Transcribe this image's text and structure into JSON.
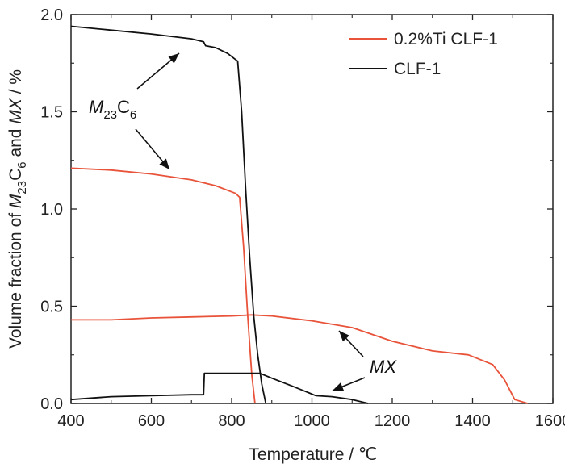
{
  "chart_data": {
    "type": "line",
    "xlabel": "Temperature / ℃",
    "ylabel": {
      "prefix": "Volume fraction of ",
      "m": "M",
      "m_sub": "23",
      "c": "C",
      "c_sub": "6",
      "and": " and ",
      "mx": "MX",
      "suffix": " / %"
    },
    "xlim": [
      400,
      1600
    ],
    "ylim": [
      0,
      2.0
    ],
    "xticks": [
      "400",
      "600",
      "800",
      "1000",
      "1200",
      "1400",
      "1600"
    ],
    "yticks": [
      "0.0",
      "0.5",
      "1.0",
      "1.5",
      "2.0"
    ],
    "grid": false,
    "legend_position": "top-right",
    "series": [
      {
        "name": "0.2%Ti CLF-1",
        "color": "#e8533a",
        "curves": [
          {
            "phase": "M23C6",
            "points": [
              [
                400,
                1.21
              ],
              [
                500,
                1.2
              ],
              [
                600,
                1.18
              ],
              [
                700,
                1.15
              ],
              [
                760,
                1.12
              ],
              [
                810,
                1.08
              ],
              [
                820,
                1.06
              ],
              [
                830,
                0.8
              ],
              [
                840,
                0.45
              ],
              [
                850,
                0.15
              ],
              [
                858,
                0.0
              ]
            ]
          },
          {
            "phase": "MX",
            "points": [
              [
                400,
                0.43
              ],
              [
                500,
                0.43
              ],
              [
                600,
                0.44
              ],
              [
                700,
                0.445
              ],
              [
                800,
                0.45
              ],
              [
                850,
                0.455
              ],
              [
                900,
                0.45
              ],
              [
                1000,
                0.425
              ],
              [
                1100,
                0.39
              ],
              [
                1200,
                0.32
              ],
              [
                1300,
                0.27
              ],
              [
                1390,
                0.25
              ],
              [
                1450,
                0.2
              ],
              [
                1480,
                0.12
              ],
              [
                1505,
                0.02
              ],
              [
                1537,
                0.0
              ]
            ]
          }
        ]
      },
      {
        "name": "CLF-1",
        "color": "#111111",
        "curves": [
          {
            "phase": "M23C6",
            "points": [
              [
                400,
                1.94
              ],
              [
                500,
                1.92
              ],
              [
                600,
                1.9
              ],
              [
                700,
                1.875
              ],
              [
                730,
                1.86
              ],
              [
                735,
                1.84
              ],
              [
                760,
                1.83
              ],
              [
                790,
                1.8
              ],
              [
                815,
                1.76
              ],
              [
                825,
                1.5
              ],
              [
                835,
                1.1
              ],
              [
                845,
                0.75
              ],
              [
                855,
                0.45
              ],
              [
                865,
                0.25
              ],
              [
                875,
                0.1
              ],
              [
                885,
                0.0
              ]
            ]
          },
          {
            "phase": "MX",
            "points": [
              [
                400,
                0.02
              ],
              [
                500,
                0.035
              ],
              [
                600,
                0.04
              ],
              [
                700,
                0.045
              ],
              [
                730,
                0.045
              ],
              [
                732,
                0.155
              ],
              [
                800,
                0.155
              ],
              [
                870,
                0.155
              ],
              [
                900,
                0.13
              ],
              [
                950,
                0.09
              ],
              [
                1010,
                0.04
              ],
              [
                1050,
                0.035
              ],
              [
                1100,
                0.02
              ],
              [
                1140,
                0.0
              ]
            ]
          }
        ]
      }
    ],
    "annotations": [
      {
        "type": "label",
        "m": "M",
        "m_sub": "23",
        "c": "C",
        "c_sub": "6"
      },
      {
        "type": "label",
        "mx": "MX"
      }
    ]
  }
}
